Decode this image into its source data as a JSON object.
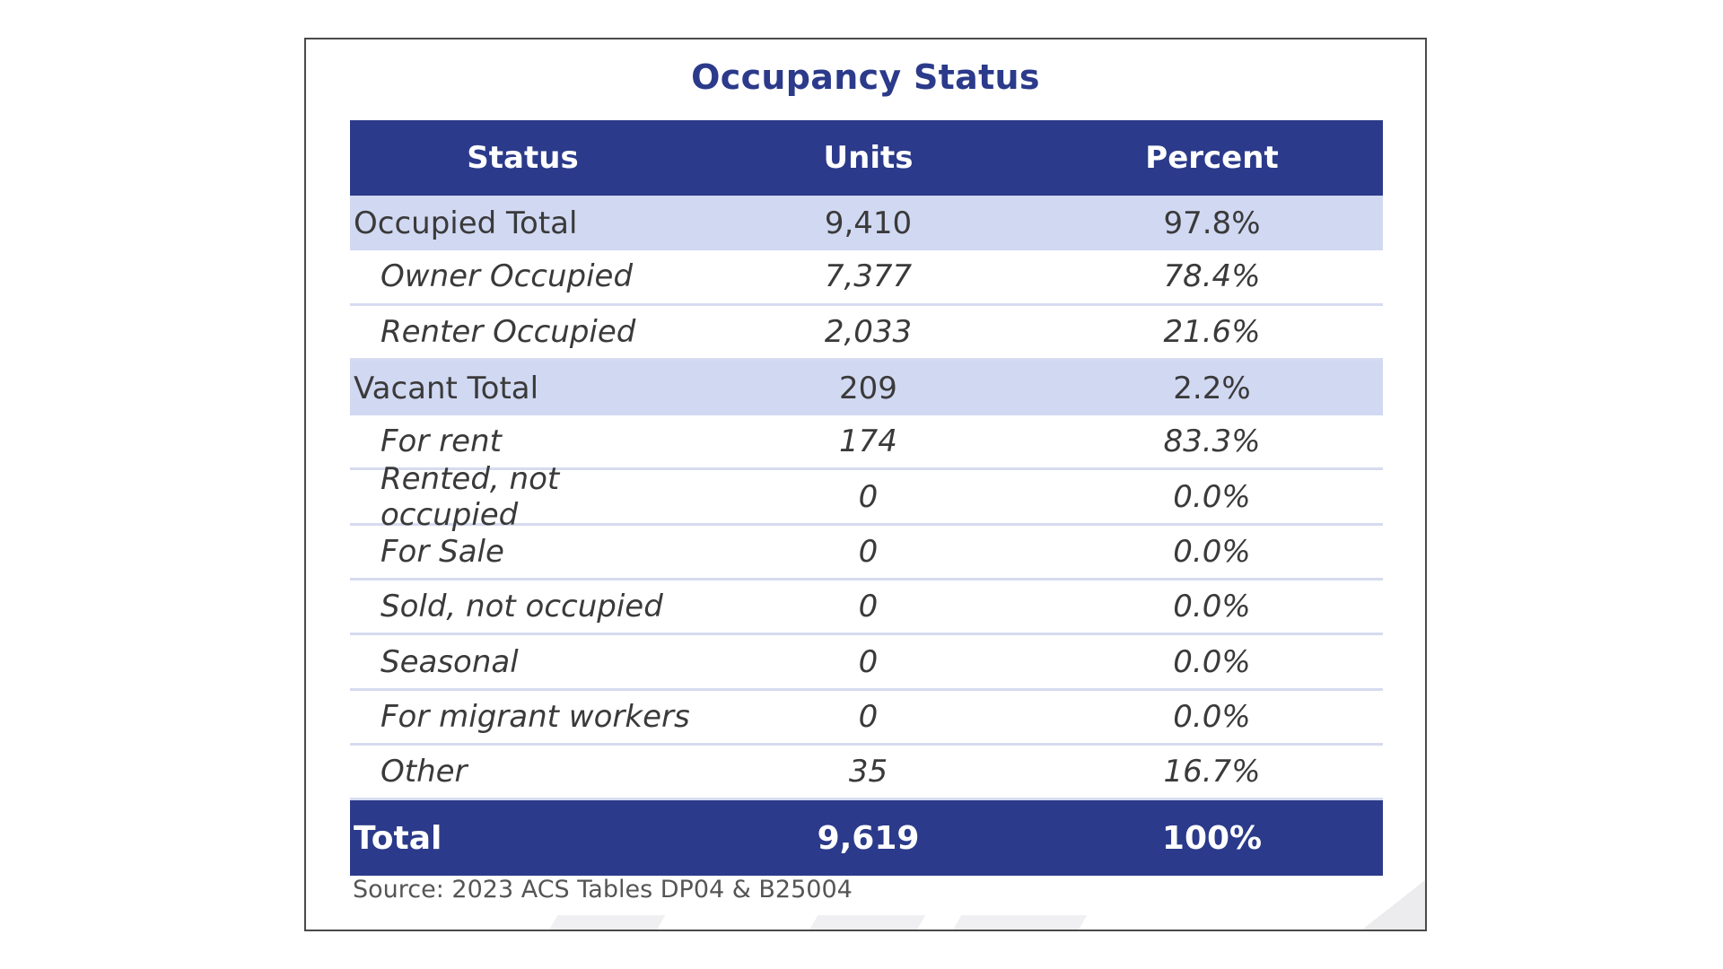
{
  "chart_data": {
    "type": "table",
    "title": "Occupancy Status",
    "columns": [
      "Status",
      "Units",
      "Percent"
    ],
    "rows": [
      {
        "status": "Occupied Total",
        "units": "9,410",
        "percent": "97.8%",
        "level": "group"
      },
      {
        "status": "Owner Occupied",
        "units": "7,377",
        "percent": "78.4%",
        "level": "sub"
      },
      {
        "status": "Renter Occupied",
        "units": "2,033",
        "percent": "21.6%",
        "level": "sub"
      },
      {
        "status": "Vacant Total",
        "units": "209",
        "percent": "2.2%",
        "level": "group"
      },
      {
        "status": "For rent",
        "units": "174",
        "percent": "83.3%",
        "level": "sub"
      },
      {
        "status": "Rented, not occupied",
        "units": "0",
        "percent": "0.0%",
        "level": "sub"
      },
      {
        "status": "For Sale",
        "units": "0",
        "percent": "0.0%",
        "level": "sub"
      },
      {
        "status": "Sold, not occupied",
        "units": "0",
        "percent": "0.0%",
        "level": "sub"
      },
      {
        "status": "Seasonal",
        "units": "0",
        "percent": "0.0%",
        "level": "sub"
      },
      {
        "status": "For migrant workers",
        "units": "0",
        "percent": "0.0%",
        "level": "sub"
      },
      {
        "status": "Other",
        "units": "35",
        "percent": "16.7%",
        "level": "sub"
      }
    ],
    "total": {
      "status": "Total",
      "units": "9,619",
      "percent": "100%"
    },
    "source": "Source: 2023 ACS Tables DP04 & B25004"
  },
  "colors": {
    "header_bg": "#2b3a8a",
    "group_bg": "#d1d8f2",
    "title": "#2b3a8a"
  }
}
